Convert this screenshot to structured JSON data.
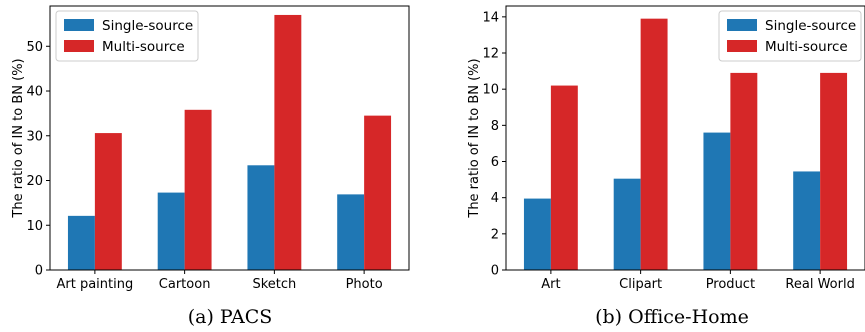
{
  "colors": {
    "single": "#1f77b4",
    "multi": "#d62728"
  },
  "chart_data": [
    {
      "type": "bar",
      "caption": "(a) PACS",
      "ylabel": "The ratio of IN to BN (%)",
      "xlabel": "",
      "categories": [
        "Art painting",
        "Cartoon",
        "Sketch",
        "Photo"
      ],
      "series": [
        {
          "name": "Single-source",
          "values": [
            12.1,
            17.3,
            23.4,
            16.9
          ]
        },
        {
          "name": "Multi-source",
          "values": [
            30.6,
            35.8,
            57.0,
            34.5
          ]
        }
      ],
      "ylim": [
        0,
        59
      ],
      "yticks": [
        0,
        10,
        20,
        30,
        40,
        50
      ],
      "grid": false,
      "legend": "top-left"
    },
    {
      "type": "bar",
      "caption": "(b) Office-Home",
      "ylabel": "The ratio of IN to BN (%)",
      "xlabel": "",
      "categories": [
        "Art",
        "Clipart",
        "Product",
        "Real World"
      ],
      "series": [
        {
          "name": "Single-source",
          "values": [
            3.95,
            5.05,
            7.6,
            5.45
          ]
        },
        {
          "name": "Multi-source",
          "values": [
            10.2,
            13.9,
            10.9,
            10.9
          ]
        }
      ],
      "ylim": [
        0,
        14.6
      ],
      "yticks": [
        0,
        2,
        4,
        6,
        8,
        10,
        12,
        14
      ],
      "grid": false,
      "legend": "top-right"
    }
  ]
}
